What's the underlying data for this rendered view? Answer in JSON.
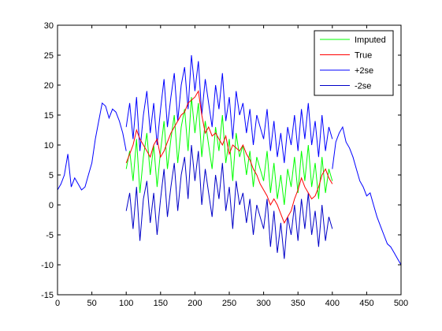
{
  "chart_data": {
    "type": "line",
    "title": "",
    "xlabel": "",
    "ylabel": "",
    "xlim": [
      0,
      500
    ],
    "ylim": [
      -15,
      30
    ],
    "xticks": [
      0,
      50,
      100,
      150,
      200,
      250,
      300,
      350,
      400,
      450,
      500
    ],
    "yticks": [
      -15,
      -10,
      -5,
      0,
      5,
      10,
      15,
      20,
      25,
      30
    ],
    "grid": false,
    "legend_position": "top-right",
    "observed_series": {
      "color": "#0000ff",
      "segments": [
        {
          "x": [
            0,
            5,
            10,
            15,
            20,
            25,
            30,
            35,
            40,
            45,
            50,
            55,
            60,
            65,
            70,
            75,
            80,
            85,
            90,
            95,
            100
          ],
          "y": [
            2.5,
            3.5,
            5.0,
            8.5,
            3.0,
            4.5,
            3.5,
            2.5,
            3.0,
            5.0,
            7.0,
            11.0,
            14.0,
            17.0,
            16.5,
            14.5,
            16.0,
            15.5,
            14.0,
            12.0,
            9.0
          ]
        },
        {
          "x": [
            400,
            405,
            410,
            415,
            420,
            425,
            430,
            435,
            440,
            445,
            450,
            455,
            460,
            465,
            470,
            475,
            480,
            485,
            490,
            495,
            500
          ],
          "y": [
            6.0,
            10.5,
            12.0,
            13.0,
            10.5,
            9.5,
            8.0,
            6.0,
            4.0,
            3.0,
            1.5,
            2.0,
            0.0,
            -2.0,
            -3.5,
            -5.0,
            -6.5,
            -7.0,
            -8.0,
            -9.0,
            -10.0
          ]
        }
      ]
    },
    "series": [
      {
        "name": "Imputed",
        "color": "#00ff00",
        "x": [
          100,
          105,
          110,
          115,
          120,
          125,
          130,
          135,
          140,
          145,
          150,
          155,
          160,
          165,
          170,
          175,
          180,
          185,
          190,
          195,
          200,
          205,
          210,
          215,
          220,
          225,
          230,
          235,
          240,
          245,
          250,
          255,
          260,
          265,
          270,
          275,
          280,
          285,
          290,
          295,
          300,
          305,
          310,
          315,
          320,
          325,
          330,
          335,
          340,
          345,
          350,
          355,
          360,
          365,
          370,
          375,
          380,
          385,
          390,
          395,
          400
        ],
        "y": [
          6,
          9,
          4,
          11,
          2,
          8,
          12,
          5,
          10,
          3,
          9,
          14,
          6,
          11,
          15,
          7,
          13,
          16,
          9,
          18,
          12,
          17,
          8,
          14,
          10,
          6,
          13,
          9,
          15,
          7,
          11,
          4,
          12,
          8,
          10,
          5,
          9,
          3,
          8,
          6,
          4,
          9,
          2,
          7,
          1,
          5,
          0,
          6,
          3,
          8,
          2,
          9,
          4,
          10,
          3,
          7,
          1,
          8,
          2,
          6,
          4
        ]
      },
      {
        "name": "True",
        "color": "#ff0000",
        "x": [
          100,
          105,
          110,
          115,
          120,
          125,
          130,
          135,
          140,
          145,
          150,
          155,
          160,
          165,
          170,
          175,
          180,
          185,
          190,
          195,
          200,
          205,
          210,
          215,
          220,
          225,
          230,
          235,
          240,
          245,
          250,
          255,
          260,
          265,
          270,
          275,
          280,
          285,
          290,
          295,
          300,
          305,
          310,
          315,
          320,
          325,
          330,
          335,
          340,
          345,
          350,
          355,
          360,
          365,
          370,
          375,
          380,
          385,
          390,
          395,
          400
        ],
        "y": [
          7,
          8.5,
          10,
          12.5,
          11,
          10,
          9,
          8,
          10,
          11,
          8,
          9,
          10.5,
          12,
          13,
          14,
          15,
          15.5,
          17,
          17.5,
          18,
          19,
          15,
          12,
          13,
          11.5,
          12,
          11,
          10,
          11.5,
          8.5,
          10,
          9.5,
          9,
          10,
          8.5,
          7.5,
          6,
          5,
          3.5,
          2.5,
          1.5,
          0,
          1,
          0,
          -1.5,
          -3,
          -2,
          -1,
          1,
          2.5,
          4.5,
          3,
          2,
          1,
          1.5,
          3,
          5,
          6,
          4.5,
          3.5
        ]
      },
      {
        "name": "+2se",
        "color": "#0000ff",
        "x": [
          100,
          105,
          110,
          115,
          120,
          125,
          130,
          135,
          140,
          145,
          150,
          155,
          160,
          165,
          170,
          175,
          180,
          185,
          190,
          195,
          200,
          205,
          210,
          215,
          220,
          225,
          230,
          235,
          240,
          245,
          250,
          255,
          260,
          265,
          270,
          275,
          280,
          285,
          290,
          295,
          300,
          305,
          310,
          315,
          320,
          325,
          330,
          335,
          340,
          345,
          350,
          355,
          360,
          365,
          370,
          375,
          380,
          385,
          390,
          395,
          400
        ],
        "y": [
          13,
          17,
          11,
          18,
          9,
          15,
          19,
          12,
          17,
          10,
          16,
          21,
          13,
          18,
          22,
          14,
          20,
          23,
          16,
          25,
          19,
          24,
          15,
          21,
          17,
          13,
          20,
          16,
          22,
          14,
          18,
          11,
          19,
          15,
          17,
          12,
          16,
          10,
          15,
          13,
          11,
          16,
          9,
          14,
          8,
          12,
          7,
          13,
          10,
          15,
          9,
          16,
          11,
          17,
          10,
          14,
          8,
          15,
          9,
          13,
          11
        ]
      },
      {
        "name": "-2se",
        "color": "#0000c8",
        "x": [
          100,
          105,
          110,
          115,
          120,
          125,
          130,
          135,
          140,
          145,
          150,
          155,
          160,
          165,
          170,
          175,
          180,
          185,
          190,
          195,
          200,
          205,
          210,
          215,
          220,
          225,
          230,
          235,
          240,
          245,
          250,
          255,
          260,
          265,
          270,
          275,
          280,
          285,
          290,
          295,
          300,
          305,
          310,
          315,
          320,
          325,
          330,
          335,
          340,
          345,
          350,
          355,
          360,
          365,
          370,
          375,
          380,
          385,
          390,
          395,
          400
        ],
        "y": [
          -1,
          2,
          -4,
          3,
          -6,
          1,
          4,
          -3,
          2,
          -5,
          1,
          6,
          -2,
          3,
          7,
          -1,
          5,
          8,
          1,
          10,
          4,
          9,
          0,
          6,
          2,
          -2,
          5,
          1,
          7,
          -1,
          3,
          -4,
          4,
          0,
          2,
          -3,
          1,
          -5,
          0,
          -2,
          -4,
          1,
          -7,
          -1,
          -8,
          -3,
          -9,
          -2,
          -5,
          0,
          -6,
          1,
          -4,
          2,
          -5,
          -1,
          -7,
          0,
          -6,
          -2,
          -4
        ]
      }
    ]
  }
}
